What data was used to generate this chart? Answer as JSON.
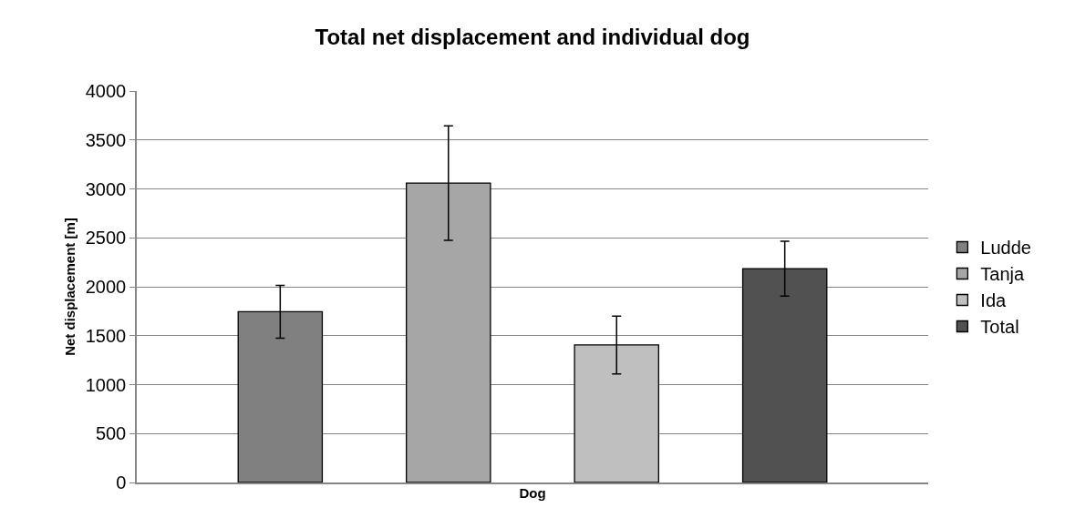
{
  "chart_data": {
    "type": "bar",
    "title": "Total net displacement and individual dog",
    "xlabel": "Dog",
    "ylabel": "Net displacement [m]",
    "categories": [
      null
    ],
    "series": [
      {
        "name": "Ludde",
        "color": "#808080",
        "values": [
          1745
        ],
        "errors": [
          270
        ]
      },
      {
        "name": "Tanja",
        "color": "#a6a6a6",
        "values": [
          3060
        ],
        "errors": [
          585
        ]
      },
      {
        "name": "Ida",
        "color": "#bfbfbf",
        "values": [
          1405
        ],
        "errors": [
          295
        ]
      },
      {
        "name": "Total",
        "color": "#515151",
        "values": [
          2185
        ],
        "errors": [
          280
        ]
      }
    ],
    "ylim": [
      0,
      4000
    ],
    "yticks": [
      0,
      500,
      1000,
      1500,
      2000,
      2500,
      3000,
      3500,
      4000
    ],
    "grid": "y",
    "legend": "right"
  }
}
